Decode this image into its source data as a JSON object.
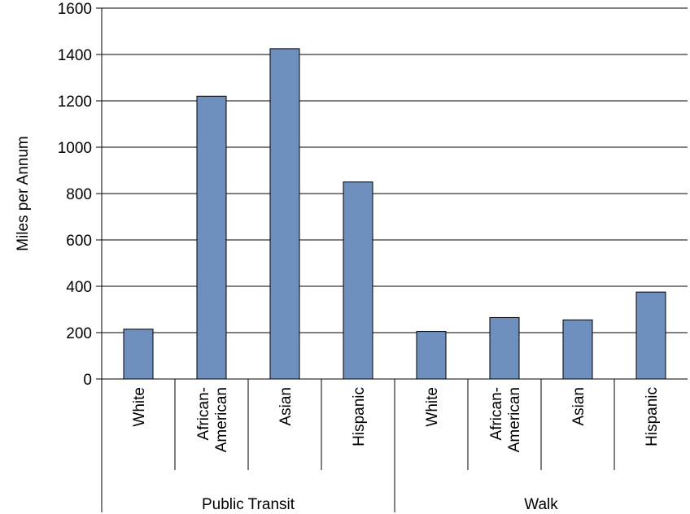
{
  "chart_data": {
    "type": "bar",
    "ylabel": "Miles per Annum",
    "ylim": [
      0,
      1600
    ],
    "yticks": [
      "0",
      "200",
      "400",
      "600",
      "800",
      "1000",
      "1200",
      "1400",
      "1600"
    ],
    "grid": true,
    "bar_color": "#6f8fbf",
    "groups": [
      {
        "name": "Public Transit",
        "categories": [
          {
            "lines": [
              "White"
            ],
            "value": 215
          },
          {
            "lines": [
              "African-",
              "American"
            ],
            "value": 1220
          },
          {
            "lines": [
              "Asian"
            ],
            "value": 1425
          },
          {
            "lines": [
              "Hispanic"
            ],
            "value": 850
          }
        ]
      },
      {
        "name": "Walk",
        "categories": [
          {
            "lines": [
              "White"
            ],
            "value": 205
          },
          {
            "lines": [
              "African-",
              "American"
            ],
            "value": 265
          },
          {
            "lines": [
              "Asian"
            ],
            "value": 255
          },
          {
            "lines": [
              "Hispanic"
            ],
            "value": 375
          }
        ]
      }
    ]
  }
}
